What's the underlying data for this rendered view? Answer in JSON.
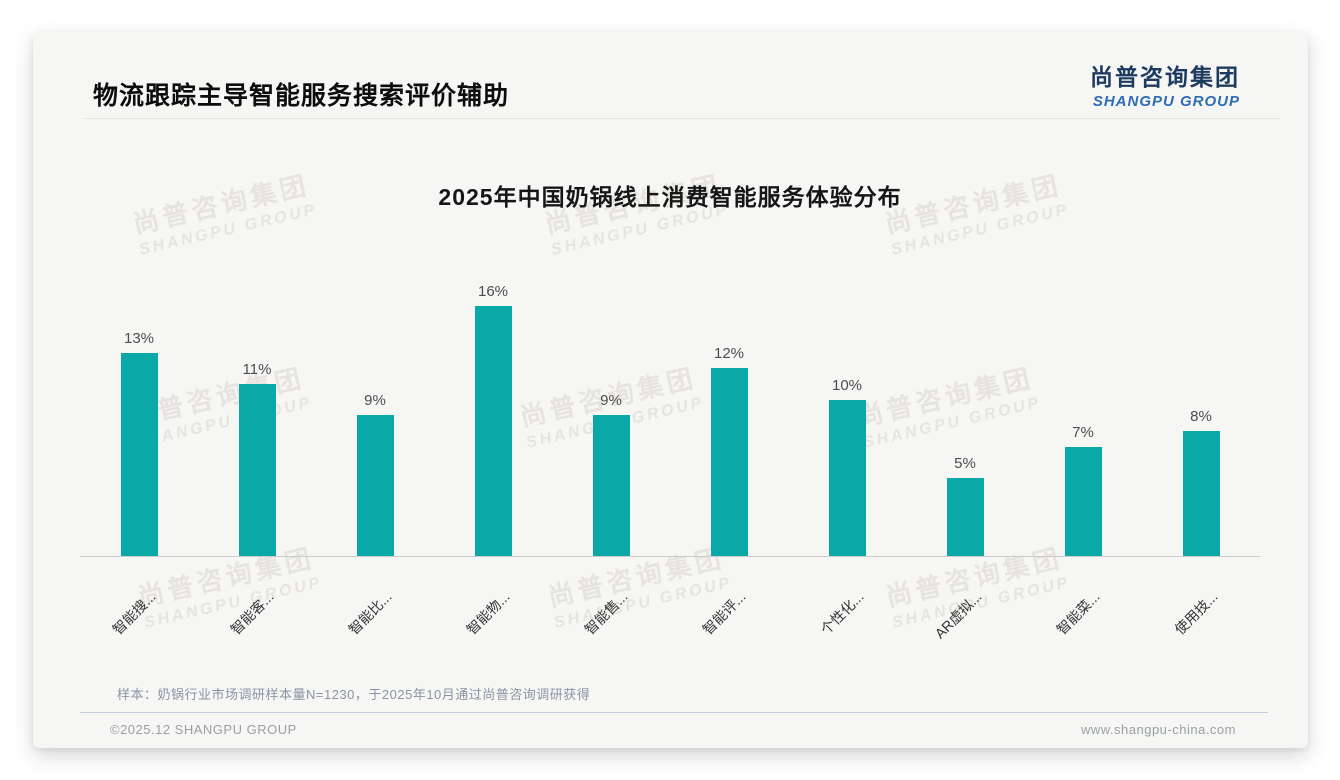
{
  "page": {
    "slide_title": "物流跟踪主导智能服务搜索评价辅助",
    "logo": {
      "cn": "尚普咨询集团",
      "en": "SHANGPU GROUP"
    },
    "watermark": {
      "cn": "尚普咨询集团",
      "en": "SHANGPU GROUP"
    },
    "note": "样本：奶锅行业市场调研样本量N=1230，于2025年10月通过尚普咨询调研获得",
    "footer_left": "©2025.12 SHANGPU GROUP",
    "footer_right": "www.shangpu-china.com"
  },
  "chart_data": {
    "type": "bar",
    "title": "2025年中国奶锅线上消费智能服务体验分布",
    "categories": [
      "智能搜...",
      "智能客...",
      "智能比...",
      "智能物...",
      "智能售...",
      "智能评...",
      "个性化...",
      "AR虚拟...",
      "智能菜...",
      "使用技..."
    ],
    "values": [
      13,
      11,
      9,
      16,
      9,
      12,
      10,
      5,
      7,
      8
    ],
    "unit": "%",
    "value_labels": [
      "13%",
      "11%",
      "9%",
      "16%",
      "9%",
      "12%",
      "10%",
      "5%",
      "7%",
      "8%"
    ],
    "bar_color": "#0aa8a6",
    "ylim": [
      0,
      16
    ],
    "grid": false,
    "legend": "none",
    "x_label_rotation": 45
  }
}
